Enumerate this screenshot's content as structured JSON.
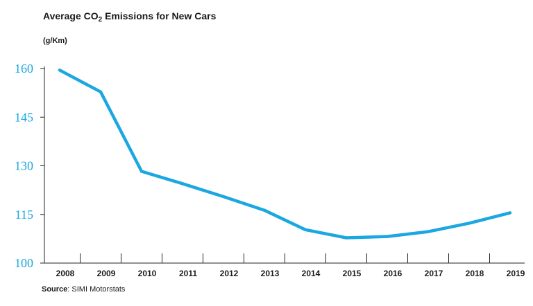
{
  "chart_data": {
    "type": "line",
    "title_prefix": "Average CO",
    "title_subscript": "2",
    "title_suffix": " Emissions for New Cars",
    "ylabel": "(g/Km)",
    "xlabel": "",
    "categories": [
      "2008",
      "2009",
      "2010",
      "2011",
      "2012",
      "2013",
      "2014",
      "2015",
      "2016",
      "2017",
      "2018",
      "2019"
    ],
    "yticks": [
      100,
      115,
      130,
      145,
      160
    ],
    "ylim": [
      100,
      160
    ],
    "series": [
      {
        "values": [
          159.5,
          152.8,
          128.3,
          124.5,
          120.5,
          116.3,
          110.3,
          107.8,
          108.2,
          109.7,
          112.3,
          115.5
        ]
      }
    ],
    "grid": false,
    "line_color": "#1ba7e1",
    "tick_label_color": "#1ba7e1"
  },
  "source": {
    "label": "Source",
    "text": ": SIMI Motorstats"
  }
}
